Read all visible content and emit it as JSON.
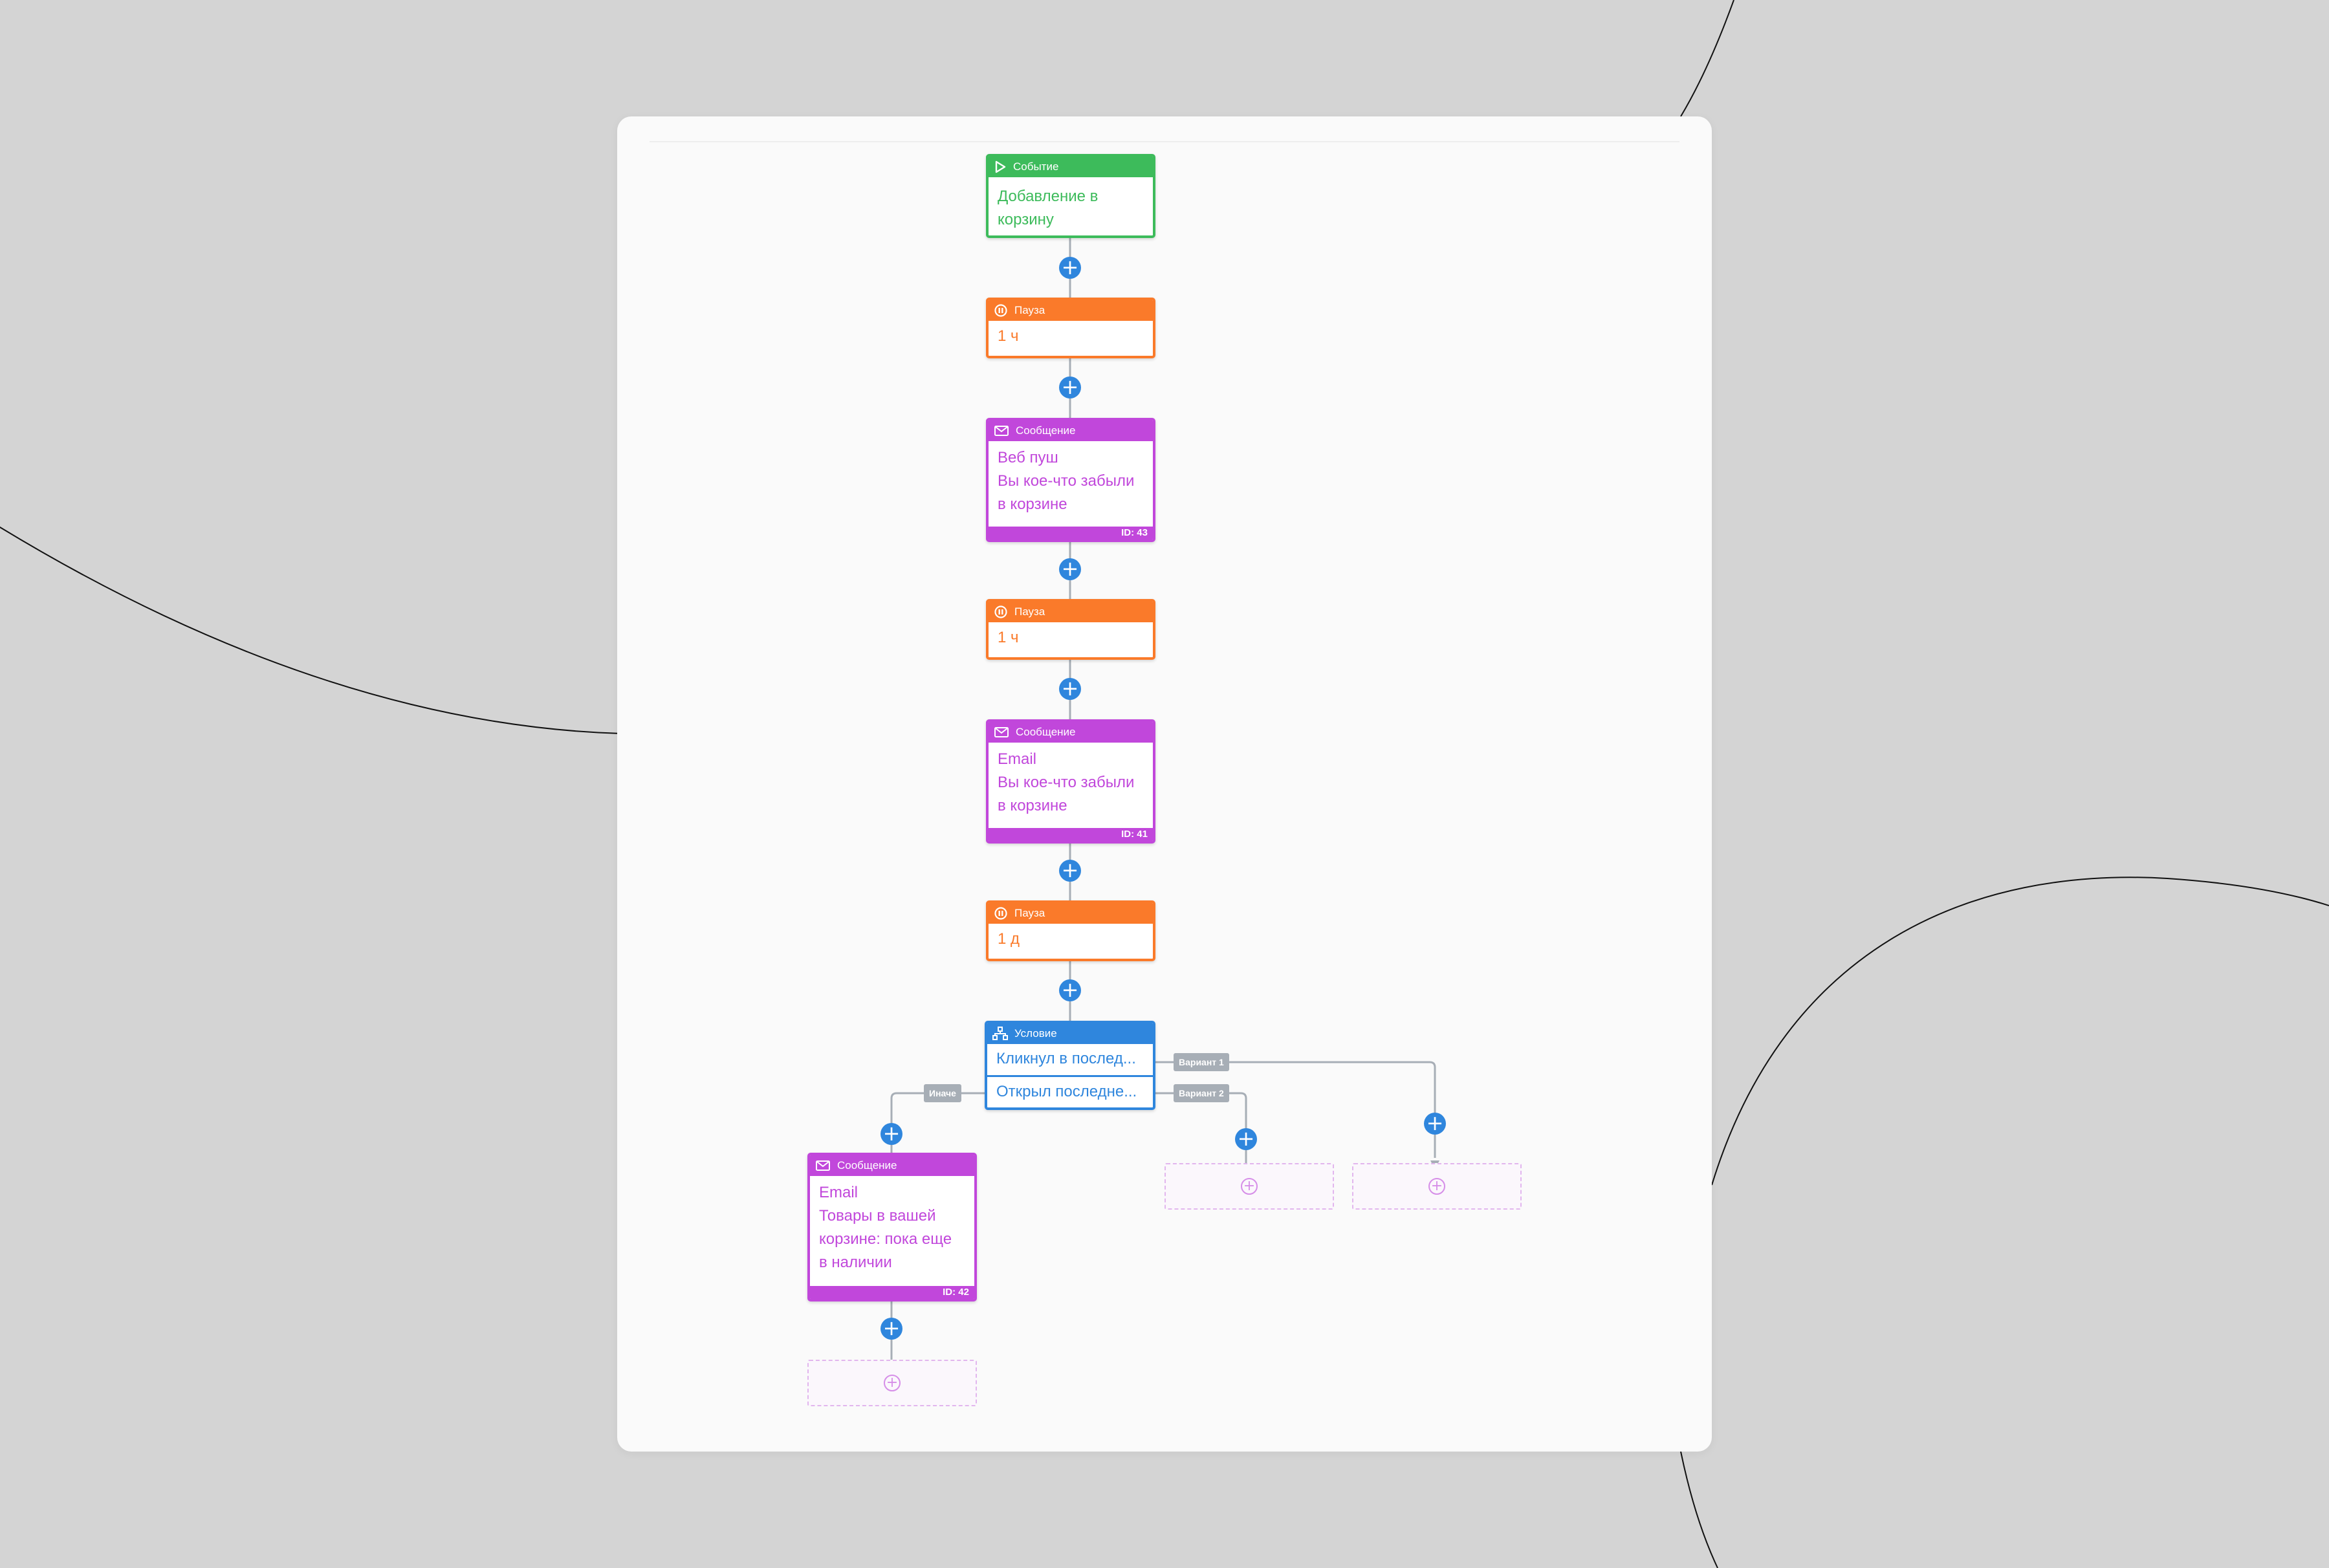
{
  "flow": {
    "event": {
      "header": "Событие",
      "lines": [
        "Добавление в",
        "корзину"
      ],
      "icon": "play-triangle-icon",
      "color": "#3dbb5b"
    },
    "pause1": {
      "header": "Пауза",
      "value": "1 ч",
      "icon": "pause-circle-icon",
      "color": "#fa7a2a"
    },
    "message1": {
      "header": "Сообщение",
      "lines": [
        "Веб пуш",
        "Вы кое-что забыли",
        "в корзине"
      ],
      "id": "ID: 43",
      "icon": "envelope-icon",
      "color": "#c147db"
    },
    "pause2": {
      "header": "Пауза",
      "value": "1 ч"
    },
    "message2": {
      "header": "Сообщение",
      "lines": [
        "Email",
        "Вы кое-что забыли",
        "в корзине"
      ],
      "id": "ID: 41"
    },
    "pause3": {
      "header": "Пауза",
      "value": "1 д"
    },
    "condition": {
      "header": "Условие",
      "row1": "Кликнул в послед...",
      "row2": "Открыл последне...",
      "icon": "branch-icon",
      "color": "#2f86dd"
    },
    "branches": {
      "variant1": "Вариант 1",
      "variant2": "Вариант 2",
      "else": "Иначе"
    },
    "message3": {
      "header": "Сообщение",
      "lines": [
        "Email",
        "Товары в вашей",
        "корзине: пока еще",
        "в наличии"
      ],
      "id": "ID: 42"
    }
  },
  "icons": {
    "add": "plus-circle-icon",
    "add_placeholder": "plus-outline-icon"
  },
  "colors": {
    "background": "#d4d4d4",
    "card": "#fafafa",
    "connector": "#a7aeb6",
    "add_button": "#2f86dd",
    "placeholder_border": "#e2b6ee"
  }
}
